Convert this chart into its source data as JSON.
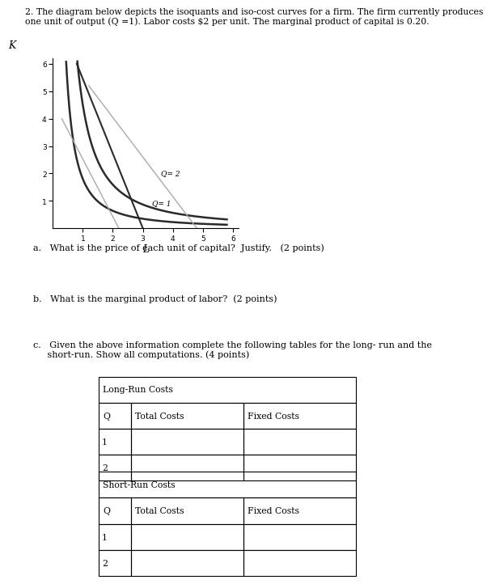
{
  "title_text": "2. The diagram below depicts the isoquants and iso-cost curves for a firm. The firm currently produces\none unit of output (Q =1). Labor costs $2 per unit. The marginal product of capital is 0.20.",
  "graph_xlim": [
    0,
    6.2
  ],
  "graph_ylim": [
    0,
    6.2
  ],
  "graph_xticks": [
    1,
    2,
    3,
    4,
    5,
    6
  ],
  "graph_yticks": [
    1,
    2,
    3,
    4,
    5,
    6
  ],
  "xlabel": "L",
  "ylabel": "K",
  "isoquant1_label": "Q= 1",
  "isoquant2_label": "Q= 2",
  "question_a": "a.   What is the price of each unit of capital?  Justify.   (2 points)",
  "question_b": "b.   What is the marginal product of labor?  (2 points)",
  "question_c": "c.   Given the above information complete the following tables for the long- run and the\n     short-run. Show all computations. (4 points)",
  "table1_title": "Long-Run Costs",
  "table1_col1": "Q",
  "table1_col2": "Total Costs",
  "table1_col3": "Fixed Costs",
  "table1_rows": [
    [
      "1",
      "",
      ""
    ],
    [
      "2",
      "",
      ""
    ]
  ],
  "table2_title": "Short-Run Costs",
  "table2_col1": "Q",
  "table2_col2": "Total Costs",
  "table2_col3": "Fixed Costs",
  "table2_rows": [
    [
      "1",
      "",
      ""
    ],
    [
      "2",
      "",
      ""
    ]
  ],
  "bg_color": "#ffffff",
  "text_color": "#000000",
  "curve_color": "#2a2a2a",
  "isocost_color": "#888888",
  "isocost2_color": "#aaaaaa"
}
